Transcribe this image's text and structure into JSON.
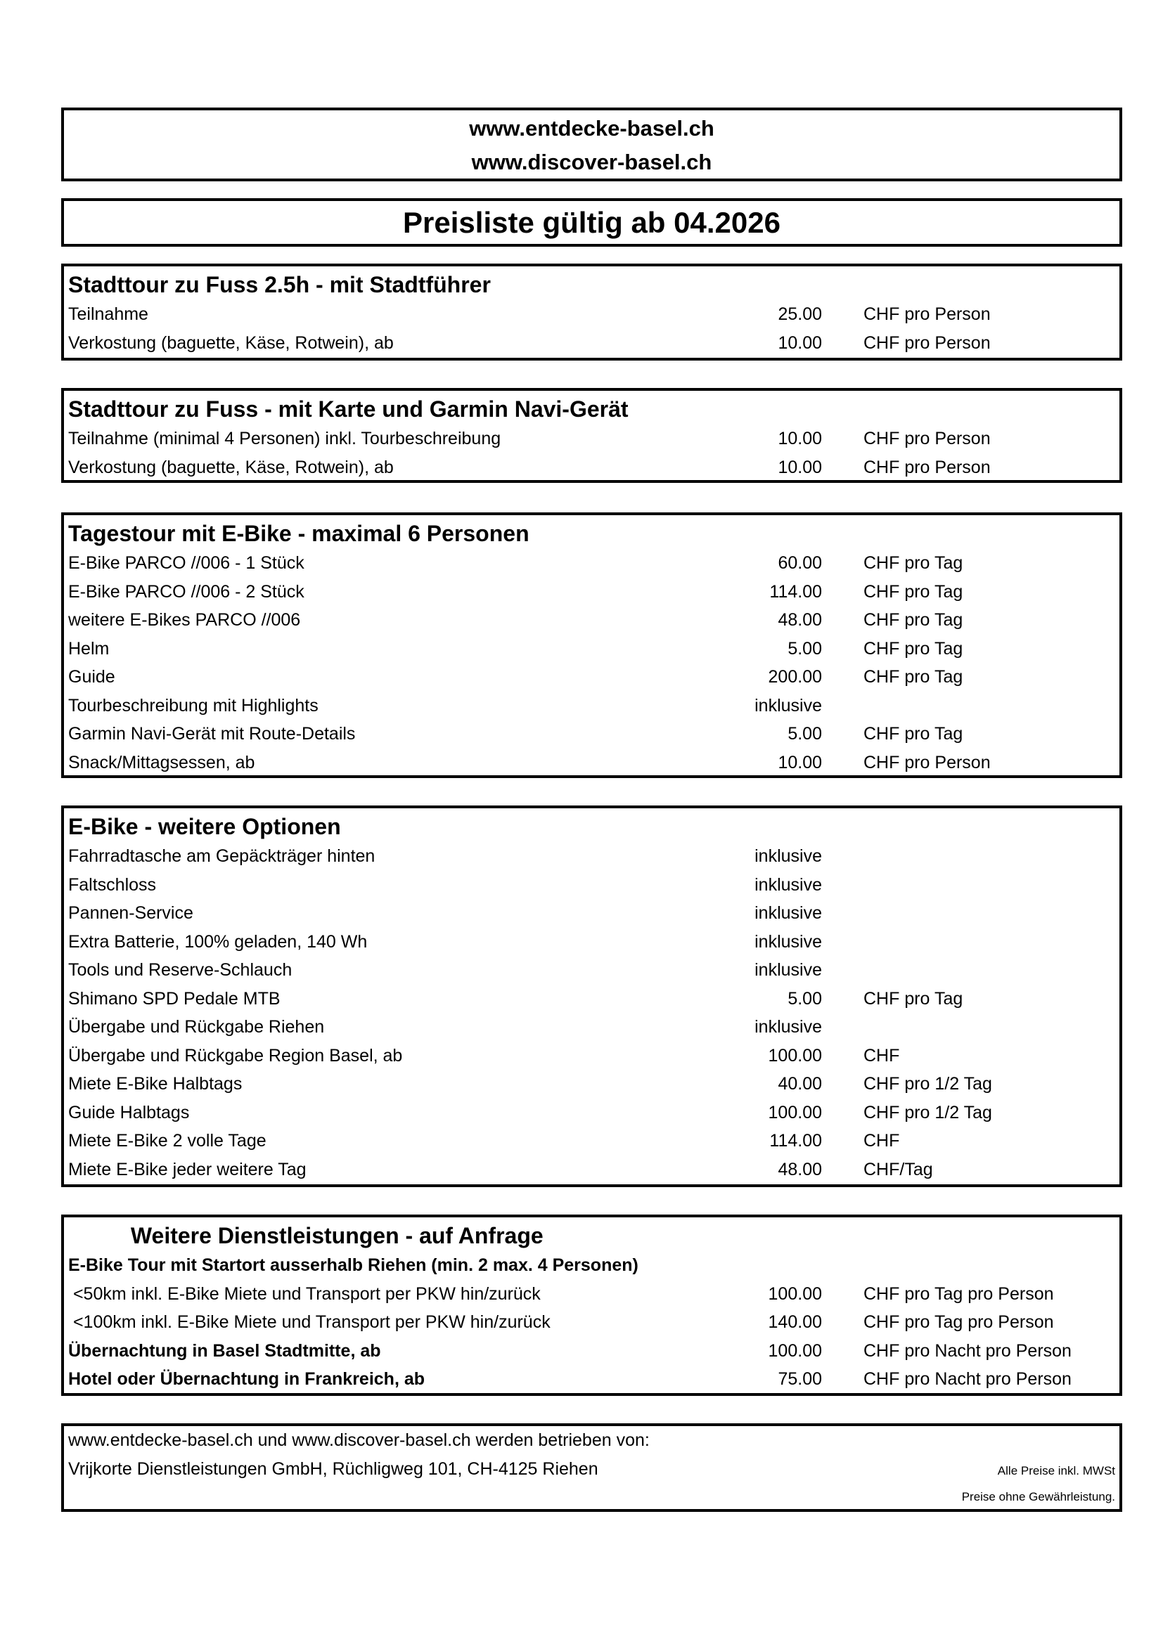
{
  "header": {
    "url1": "www.entdecke-basel.ch",
    "url2": "www.discover-basel.ch"
  },
  "title": "Preisliste gültig ab 04.2026",
  "sections": [
    {
      "heading": "Stadttour zu Fuss 2.5h - mit Stadtführer",
      "rows": [
        {
          "label": "Teilnahme",
          "price": "25.00",
          "unit": "CHF pro Person"
        },
        {
          "label": "Verkostung (baguette, Käse, Rotwein), ab",
          "price": "10.00",
          "unit": "CHF pro Person"
        }
      ]
    },
    {
      "heading": "Stadttour zu Fuss - mit Karte und Garmin Navi-Gerät",
      "rows": [
        {
          "label": "Teilnahme (minimal 4 Personen) inkl. Tourbeschreibung",
          "price": "10.00",
          "unit": "CHF pro Person"
        },
        {
          "label": "Verkostung (baguette, Käse, Rotwein), ab",
          "price": "10.00",
          "unit": "CHF pro Person"
        }
      ]
    },
    {
      "heading": "Tagestour mit E-Bike - maximal 6 Personen",
      "rows": [
        {
          "label": "E-Bike PARCO //006 - 1 Stück",
          "price": "60.00",
          "unit": "CHF pro Tag"
        },
        {
          "label": "E-Bike PARCO //006 - 2 Stück",
          "price": "114.00",
          "unit": "CHF pro Tag"
        },
        {
          "label": "weitere E-Bikes PARCO //006",
          "price": "48.00",
          "unit": "CHF pro Tag"
        },
        {
          "label": "Helm",
          "price": "5.00",
          "unit": "CHF pro Tag"
        },
        {
          "label": "Guide",
          "price": "200.00",
          "unit": "CHF pro Tag"
        },
        {
          "label": "Tourbeschreibung mit Highlights",
          "price": "inklusive",
          "unit": ""
        },
        {
          "label": "Garmin Navi-Gerät mit Route-Details",
          "price": "5.00",
          "unit": "CHF pro Tag"
        },
        {
          "label": "Snack/Mittagsessen, ab",
          "price": "10.00",
          "unit": "CHF pro Person"
        }
      ]
    },
    {
      "heading": "E-Bike - weitere Optionen",
      "rows": [
        {
          "label": "Fahrradtasche am Gepäckträger hinten",
          "price": "inklusive",
          "unit": ""
        },
        {
          "label": "Faltschloss",
          "price": "inklusive",
          "unit": ""
        },
        {
          "label": "Pannen-Service",
          "price": "inklusive",
          "unit": ""
        },
        {
          "label": "Extra Batterie, 100% geladen, 140 Wh",
          "price": "inklusive",
          "unit": ""
        },
        {
          "label": "Tools und Reserve-Schlauch",
          "price": "inklusive",
          "unit": ""
        },
        {
          "label": "Shimano SPD Pedale MTB",
          "price": "5.00",
          "unit": "CHF pro Tag"
        },
        {
          "label": "Übergabe und Rückgabe Riehen",
          "price": "inklusive",
          "unit": ""
        },
        {
          "label": "Übergabe und Rückgabe Region Basel, ab",
          "price": "100.00",
          "unit": "CHF"
        },
        {
          "label": "Miete E-Bike Halbtags",
          "price": "40.00",
          "unit": "CHF pro 1/2 Tag"
        },
        {
          "label": "Guide Halbtags",
          "price": "100.00",
          "unit": "CHF pro 1/2 Tag"
        },
        {
          "label": "Miete E-Bike 2 volle Tage",
          "price": "114.00",
          "unit": "CHF"
        },
        {
          "label": "Miete E-Bike jeder weitere Tag",
          "price": "48.00",
          "unit": "CHF/Tag"
        }
      ]
    },
    {
      "heading": "          Weitere Dienstleistungen - auf Anfrage",
      "rows": [
        {
          "label": "E-Bike Tour mit Startort ausserhalb Riehen (min. 2 max. 4 Personen)",
          "price": "",
          "unit": "",
          "bold": true
        },
        {
          "label": " <50km inkl. E-Bike Miete und Transport per PKW hin/zurück",
          "price": "100.00",
          "unit": "CHF pro Tag pro Person"
        },
        {
          "label": " <100km inkl. E-Bike Miete und Transport per PKW hin/zurück",
          "price": "140.00",
          "unit": "CHF pro Tag pro Person"
        },
        {
          "label": "Übernachtung in Basel Stadtmitte, ab",
          "price": "100.00",
          "unit": "CHF pro Nacht pro Person",
          "bold": true
        },
        {
          "label": "Hotel oder Übernachtung in Frankreich, ab",
          "price": "75.00",
          "unit": "CHF pro Nacht pro Person",
          "bold": true
        }
      ]
    }
  ],
  "footer": {
    "line1": "www.entdecke-basel.ch und www.discover-basel.ch werden betrieben von:",
    "line2": "Vrijkorte Dienstleistungen GmbH, Rüchligweg 101, CH-4125 Riehen",
    "note1": "Alle Preise inkl. MWSt",
    "note2": "Preise ohne Gewährleistung."
  }
}
